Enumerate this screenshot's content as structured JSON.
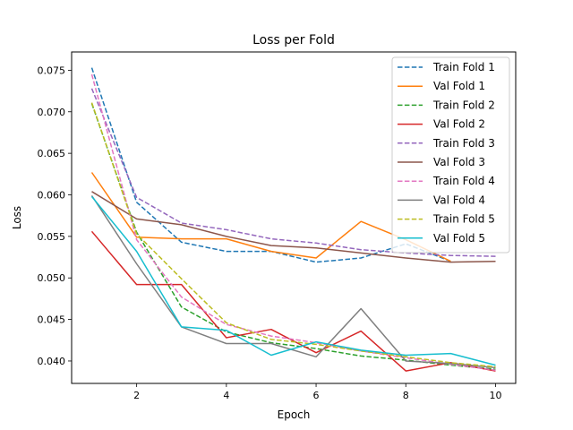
{
  "chart_data": {
    "type": "line",
    "title": "Loss per Fold",
    "xlabel": "Epoch",
    "ylabel": "Loss",
    "xlim": [
      0.55,
      10.45
    ],
    "ylim": [
      0.0373,
      0.0772
    ],
    "xticks": [
      2,
      4,
      6,
      8,
      10
    ],
    "yticks": [
      0.04,
      0.045,
      0.05,
      0.055,
      0.06,
      0.065,
      0.07,
      0.075
    ],
    "ytick_labels": [
      "0.040",
      "0.045",
      "0.050",
      "0.055",
      "0.060",
      "0.065",
      "0.070",
      "0.075"
    ],
    "grid": false,
    "legend_position": "top-right",
    "x": [
      1,
      2,
      3,
      4,
      5,
      6,
      7,
      8,
      9,
      10
    ],
    "series": [
      {
        "name": "Train Fold 1",
        "color": "#1f77b4",
        "style": "dashed",
        "values": [
          0.0753,
          0.0591,
          0.0543,
          0.0532,
          0.0532,
          0.0519,
          0.0524,
          0.0541,
          0.052,
          null
        ]
      },
      {
        "name": "Val Fold 1",
        "color": "#ff7f0e",
        "style": "solid",
        "values": [
          0.0627,
          0.0549,
          0.0547,
          0.0547,
          0.0532,
          0.0524,
          0.0568,
          0.0546,
          0.052,
          null
        ]
      },
      {
        "name": "Train Fold 2",
        "color": "#2ca02c",
        "style": "dashed",
        "values": [
          0.071,
          0.0555,
          0.0465,
          0.0435,
          0.0422,
          0.0415,
          0.0406,
          0.0401,
          0.0395,
          0.039
        ]
      },
      {
        "name": "Val Fold 2",
        "color": "#d62728",
        "style": "solid",
        "values": [
          0.0556,
          0.0492,
          0.0492,
          0.0428,
          0.0438,
          0.041,
          0.0436,
          0.0388,
          0.0398,
          0.0388
        ]
      },
      {
        "name": "Train Fold 3",
        "color": "#9467bd",
        "style": "dashed",
        "values": [
          0.0728,
          0.0597,
          0.0566,
          0.0558,
          0.0547,
          0.0542,
          0.0534,
          0.053,
          0.0527,
          0.0526
        ]
      },
      {
        "name": "Val Fold 3",
        "color": "#8c564b",
        "style": "solid",
        "values": [
          0.0604,
          0.0571,
          0.0564,
          0.055,
          0.0539,
          0.0536,
          0.053,
          0.0524,
          0.0519,
          0.052
        ]
      },
      {
        "name": "Train Fold 4",
        "color": "#e377c2",
        "style": "dashed",
        "values": [
          0.0745,
          0.0546,
          0.0477,
          0.0444,
          0.043,
          0.0422,
          0.0412,
          0.0404,
          0.0396,
          0.0389
        ]
      },
      {
        "name": "Val Fold 4",
        "color": "#7f7f7f",
        "style": "solid",
        "values": [
          0.0599,
          0.0517,
          0.0441,
          0.0421,
          0.0421,
          0.0405,
          0.0463,
          0.04,
          0.0397,
          0.0392
        ]
      },
      {
        "name": "Train Fold 5",
        "color": "#bcbd22",
        "style": "dashed",
        "values": [
          0.0711,
          0.0553,
          0.0499,
          0.0446,
          0.0426,
          0.042,
          0.0412,
          0.0405,
          0.0398,
          0.0393
        ]
      },
      {
        "name": "Val Fold 5",
        "color": "#17becf",
        "style": "solid",
        "values": [
          0.0598,
          0.0532,
          0.0441,
          0.0437,
          0.0407,
          0.0423,
          0.0413,
          0.0407,
          0.0409,
          0.0395
        ]
      }
    ]
  }
}
